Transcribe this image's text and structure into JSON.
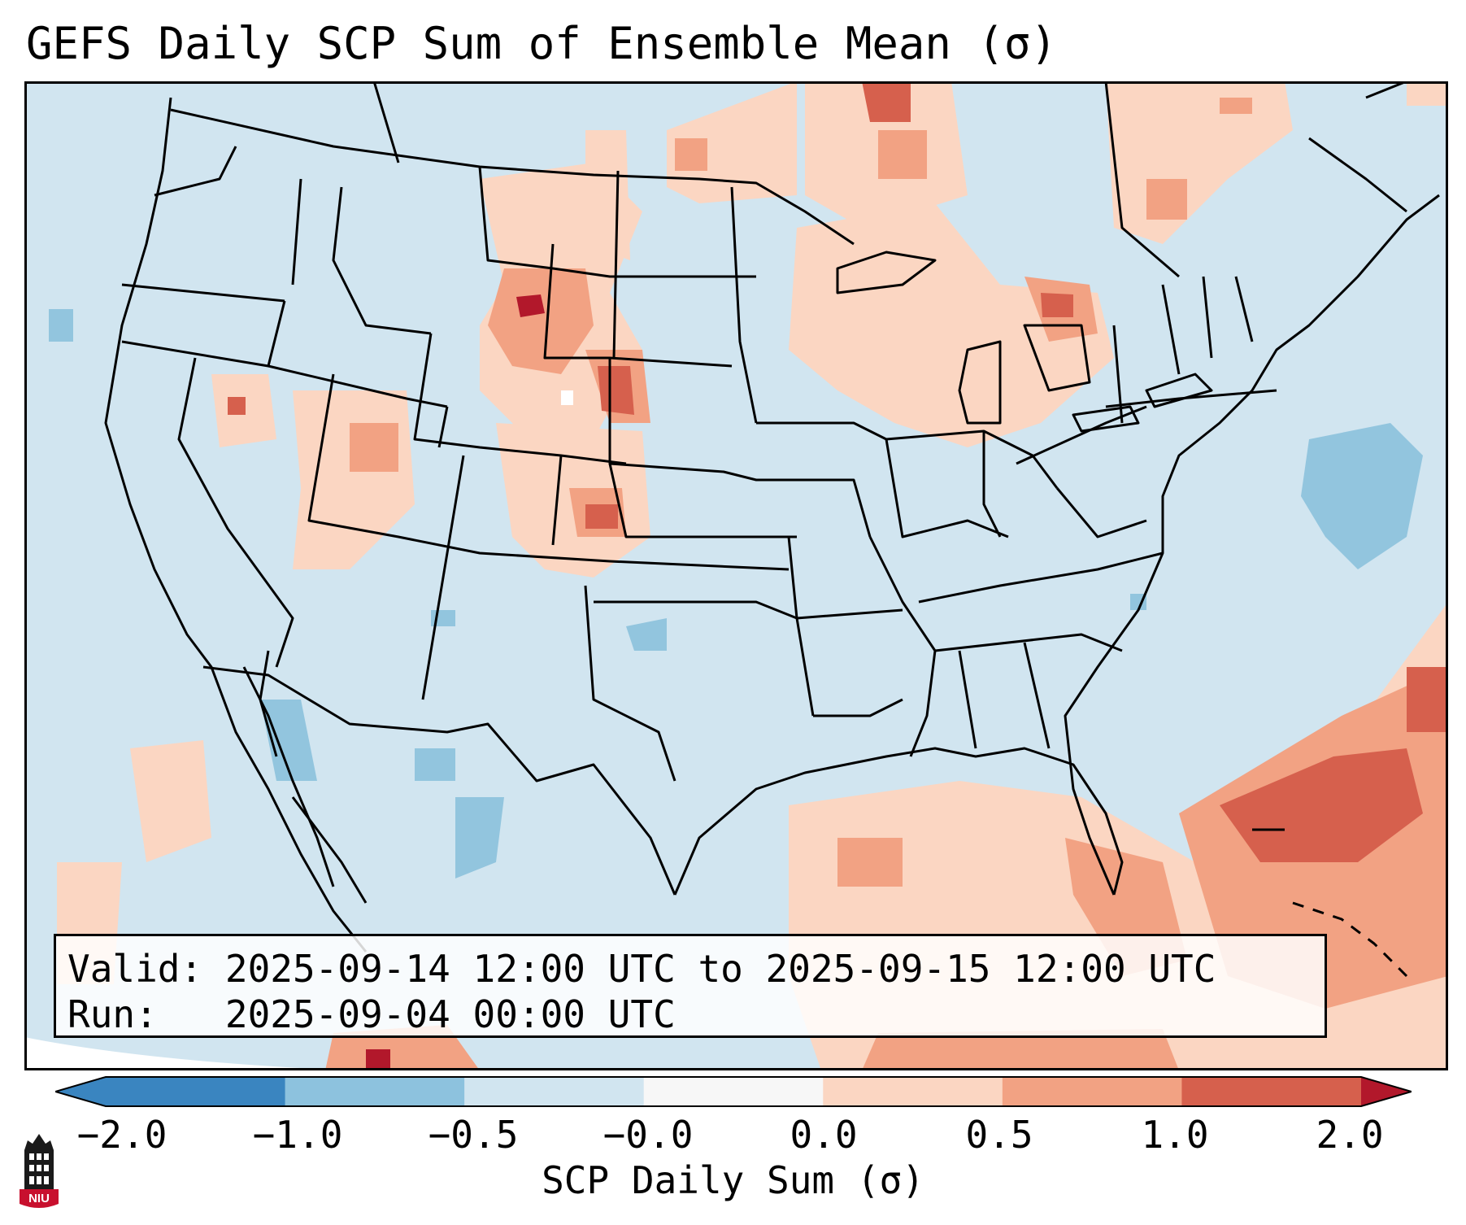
{
  "title": "GEFS Daily SCP Sum of Ensemble Mean (σ)",
  "info": {
    "valid_label": "Valid:",
    "valid_value": "2025-09-14 12:00 UTC to 2025-09-15 12:00 UTC",
    "run_label": "Run:",
    "run_value": "2025-09-04 00:00 UTC"
  },
  "colorbar": {
    "label": "SCP Daily Sum (σ)",
    "ticks": [
      "−2.0",
      "−1.0",
      "−0.5",
      "−0.0",
      "0.0",
      "0.5",
      "1.0",
      "2.0"
    ],
    "colors": [
      "#3a85c0",
      "#8dc2de",
      "#d1e5f0",
      "#f7f7f7",
      "#fbd6c2",
      "#f2a283",
      "#d6604d",
      "#b2182b"
    ],
    "extend": "both"
  },
  "legend_colors": {
    "background_bin": "#d1e5f0",
    "light_red": "#fbd6c2",
    "medium_red": "#f2a283",
    "dark_red": "#d6604d",
    "darkest_red": "#b2182b",
    "light_blue": "#92c5de"
  },
  "logo": {
    "text": "NIU",
    "color": "#c8102e",
    "icon": "university-tower-icon"
  }
}
